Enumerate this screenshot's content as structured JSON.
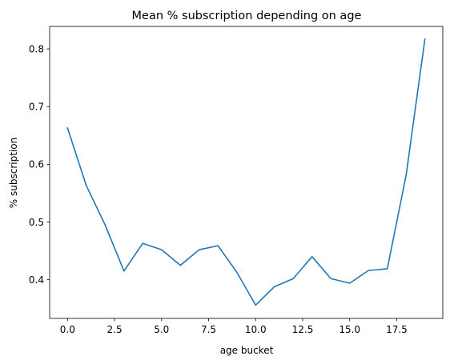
{
  "chart_data": {
    "type": "line",
    "title": "Mean % subscription depending on age",
    "xlabel": "age bucket",
    "ylabel": "% subscription",
    "xlim": [
      -0.95,
      19.95
    ],
    "ylim": [
      0.333,
      0.839
    ],
    "grid": false,
    "x_ticks": [
      {
        "value": 0,
        "label": "0.0"
      },
      {
        "value": 2.5,
        "label": "2.5"
      },
      {
        "value": 5,
        "label": "5.0"
      },
      {
        "value": 7.5,
        "label": "7.5"
      },
      {
        "value": 10,
        "label": "10.0"
      },
      {
        "value": 12.5,
        "label": "12.5"
      },
      {
        "value": 15,
        "label": "15.0"
      },
      {
        "value": 17.5,
        "label": "17.5"
      }
    ],
    "y_ticks": [
      {
        "value": 0.4,
        "label": "0.4"
      },
      {
        "value": 0.5,
        "label": "0.5"
      },
      {
        "value": 0.6,
        "label": "0.6"
      },
      {
        "value": 0.7,
        "label": "0.7"
      },
      {
        "value": 0.8,
        "label": "0.8"
      }
    ],
    "series": [
      {
        "color": "#1f77b4",
        "x": [
          0,
          1,
          2,
          3,
          4,
          5,
          6,
          7,
          8,
          9,
          10,
          11,
          12,
          13,
          14,
          15,
          16,
          17,
          18,
          19
        ],
        "values": [
          0.663,
          0.563,
          0.495,
          0.415,
          0.463,
          0.452,
          0.425,
          0.452,
          0.459,
          0.413,
          0.356,
          0.388,
          0.402,
          0.44,
          0.402,
          0.394,
          0.416,
          0.419,
          0.581,
          0.817
        ]
      }
    ]
  }
}
